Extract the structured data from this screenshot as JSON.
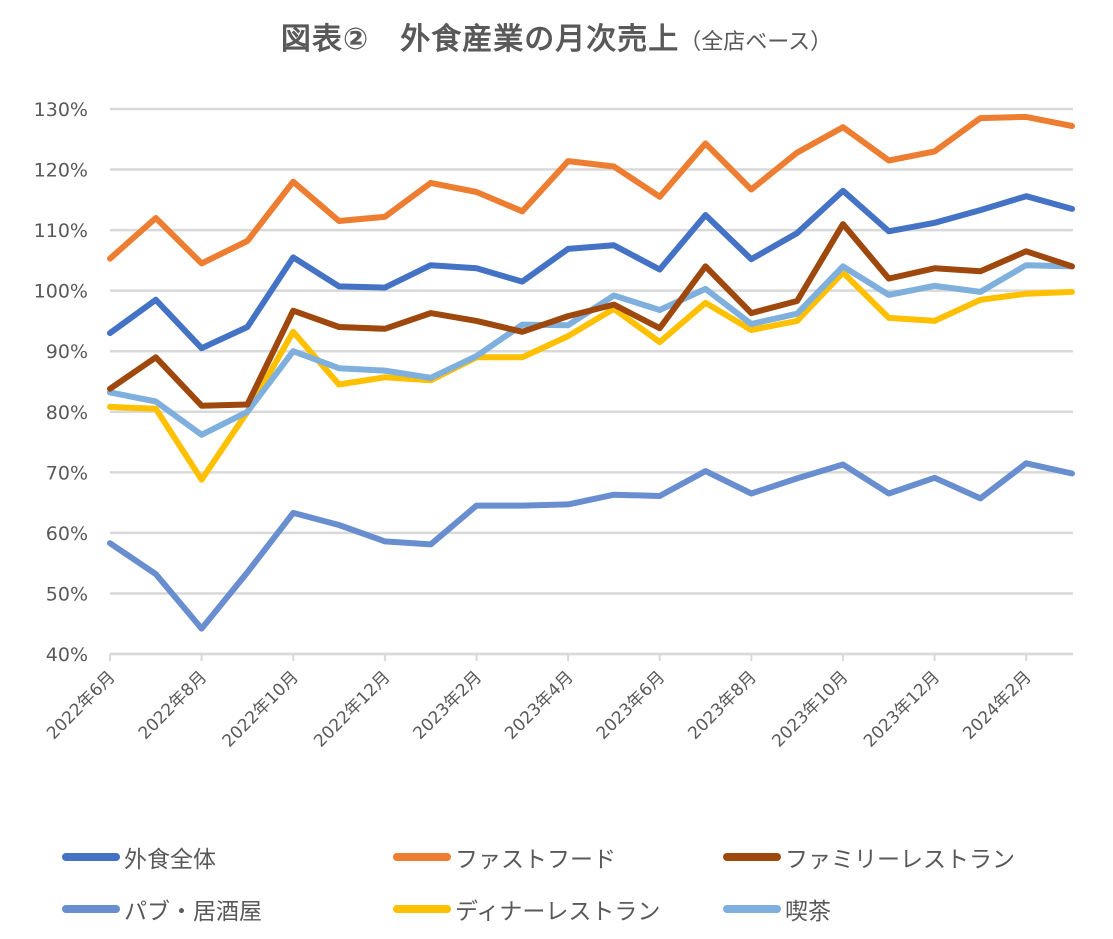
{
  "title": {
    "main": "図表②　外食産業の月次売上",
    "sub": "（全店ベース）"
  },
  "chart_data": {
    "type": "line",
    "title": "図表②　外食産業の月次売上（全店ベース）",
    "xlabel": "",
    "ylabel": "",
    "ylim": [
      0.4,
      1.3
    ],
    "yticks": [
      0.4,
      0.5,
      0.6,
      0.7,
      0.8,
      0.9,
      1.0,
      1.1,
      1.2,
      1.3
    ],
    "ytick_labels": [
      "40%",
      "50%",
      "60%",
      "70%",
      "80%",
      "90%",
      "100%",
      "110%",
      "120%",
      "130%"
    ],
    "grid": true,
    "legend_position": "bottom",
    "x": [
      "2022年6月",
      "2022年7月",
      "2022年8月",
      "2022年9月",
      "2022年10月",
      "2022年11月",
      "2022年12月",
      "2023年1月",
      "2023年2月",
      "2023年3月",
      "2023年4月",
      "2023年5月",
      "2023年6月",
      "2023年7月",
      "2023年8月",
      "2023年9月",
      "2023年10月",
      "2023年11月",
      "2023年12月",
      "2024年1月",
      "2024年2月",
      "2024年3月"
    ],
    "xtick_labels": [
      "2022年6月",
      "2022年8月",
      "2022年10月",
      "2022年12月",
      "2023年2月",
      "2023年4月",
      "2023年6月",
      "2023年8月",
      "2023年10月",
      "2023年12月",
      "2024年2月"
    ],
    "series": [
      {
        "name": "外食全体",
        "color": "#4472C4",
        "values": [
          0.93,
          0.985,
          0.905,
          0.94,
          1.055,
          1.007,
          1.005,
          1.042,
          1.037,
          1.015,
          1.069,
          1.075,
          1.035,
          1.125,
          1.052,
          1.095,
          1.165,
          1.098,
          1.112,
          1.133,
          1.156,
          1.135
        ]
      },
      {
        "name": "ファストフード",
        "color": "#ED7D31",
        "values": [
          1.053,
          1.12,
          1.045,
          1.082,
          1.18,
          1.115,
          1.122,
          1.178,
          1.163,
          1.131,
          1.214,
          1.205,
          1.155,
          1.243,
          1.167,
          1.228,
          1.27,
          1.215,
          1.23,
          1.285,
          1.287,
          1.272
        ]
      },
      {
        "name": "ファミリーレストラン",
        "color": "#9E480E",
        "values": [
          0.838,
          0.89,
          0.81,
          0.812,
          0.967,
          0.94,
          0.937,
          0.963,
          0.95,
          0.932,
          0.958,
          0.977,
          0.938,
          1.04,
          0.963,
          0.983,
          1.11,
          1.02,
          1.037,
          1.032,
          1.065,
          1.04
        ]
      },
      {
        "name": "パブ・居酒屋",
        "color": "#698ED0",
        "values": [
          0.583,
          0.532,
          0.442,
          0.535,
          0.633,
          0.613,
          0.586,
          0.581,
          0.645,
          0.645,
          0.647,
          0.663,
          0.661,
          0.702,
          0.665,
          0.69,
          0.713,
          0.665,
          0.691,
          0.657,
          0.715,
          0.698
        ]
      },
      {
        "name": "ディナーレストラン",
        "color": "#FFC000",
        "values": [
          0.808,
          0.805,
          0.688,
          0.8,
          0.932,
          0.845,
          0.857,
          0.852,
          0.89,
          0.89,
          0.925,
          0.97,
          0.915,
          0.98,
          0.935,
          0.95,
          1.03,
          0.955,
          0.95,
          0.985,
          0.995,
          0.998
        ]
      },
      {
        "name": "喫茶",
        "color": "#7EAFDD",
        "values": [
          0.832,
          0.817,
          0.762,
          0.8,
          0.9,
          0.872,
          0.868,
          0.856,
          0.892,
          0.944,
          0.943,
          0.992,
          0.968,
          1.003,
          0.945,
          0.962,
          1.04,
          0.993,
          1.008,
          0.998,
          1.042,
          1.04
        ]
      }
    ]
  }
}
